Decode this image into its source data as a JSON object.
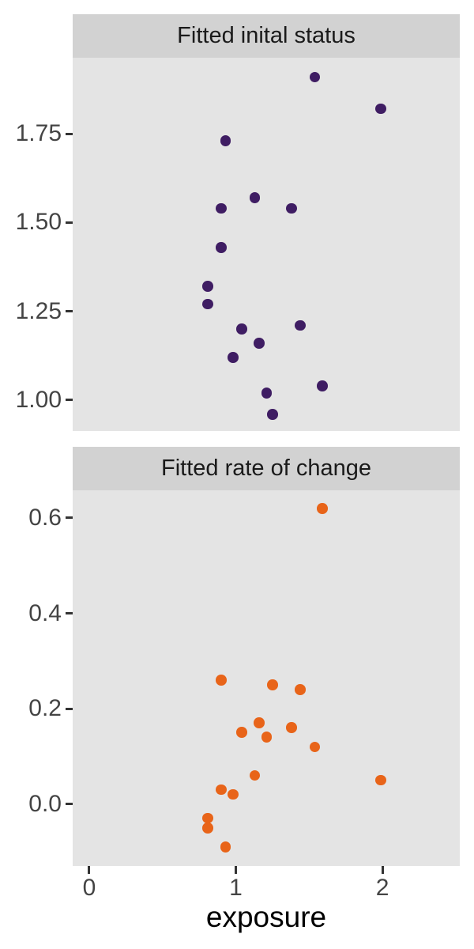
{
  "chart_data": {
    "type": "scatter",
    "xlabel": "exposure",
    "grid": false,
    "legend": "none",
    "x_axis": {
      "tick_values": [
        0,
        1,
        2
      ],
      "tick_labels": [
        "0",
        "1",
        "2"
      ],
      "range": [
        -0.113,
        2.528
      ]
    },
    "facets": [
      {
        "title": "Fitted inital status",
        "point_color": "#3F1D63",
        "y_axis": {
          "tick_values": [
            1.0,
            1.25,
            1.5,
            1.75
          ],
          "tick_labels": [
            "1.00",
            "1.25",
            "1.50",
            "1.75"
          ],
          "range": [
            0.913,
            1.964
          ]
        },
        "x": [
          1.54,
          1.99,
          0.93,
          1.13,
          0.9,
          1.38,
          0.9,
          0.81,
          0.81,
          1.04,
          1.16,
          1.44,
          0.98,
          1.21,
          1.59,
          1.25
        ],
        "y": [
          1.91,
          1.82,
          1.73,
          1.57,
          1.54,
          1.54,
          1.43,
          1.32,
          1.27,
          1.2,
          1.16,
          1.21,
          1.12,
          1.02,
          1.04,
          0.96
        ]
      },
      {
        "title": "Fitted rate of change",
        "point_color": "#E86419",
        "y_axis": {
          "tick_values": [
            0.0,
            0.2,
            0.4,
            0.6
          ],
          "tick_labels": [
            "0.0",
            "0.2",
            "0.4",
            "0.6"
          ],
          "range": [
            -0.13,
            0.658
          ]
        },
        "x": [
          1.59,
          0.9,
          1.25,
          1.44,
          1.16,
          1.38,
          1.04,
          1.21,
          1.54,
          1.13,
          0.9,
          0.98,
          1.99,
          0.81,
          0.81,
          0.93
        ],
        "y": [
          0.62,
          0.26,
          0.25,
          0.24,
          0.17,
          0.16,
          0.15,
          0.14,
          0.12,
          0.06,
          0.03,
          0.02,
          0.05,
          -0.03,
          -0.05,
          -0.09
        ]
      }
    ],
    "styles": {
      "background": "#FFFFFF",
      "panel_bg": "#E4E4E4",
      "strip_bg": "#D2D2D2",
      "strip_text_color": "#1A1A1A",
      "tick_label_color": "#444444",
      "tick_mark_color": "#333333",
      "axis_title_color": "#000000"
    }
  }
}
